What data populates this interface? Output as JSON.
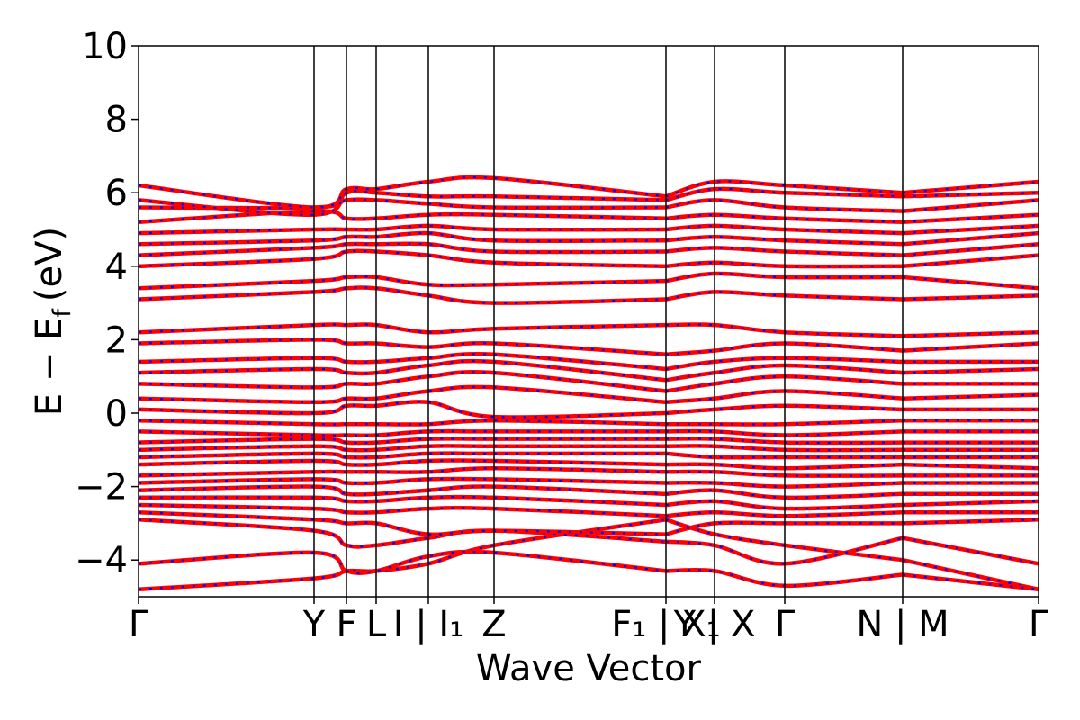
{
  "chart_data": {
    "type": "line",
    "xlabel": "Wave Vector",
    "ylabel_text": "E − E",
    "ylabel_subscript": "f",
    "ylabel_unit": "(eV)",
    "ylim": [
      -5,
      10
    ],
    "yticks": [
      -4,
      -2,
      0,
      2,
      4,
      6,
      8,
      10
    ],
    "ytick_labels": [
      "−4",
      "−2",
      "0",
      "2",
      "4",
      "6",
      "8",
      "10"
    ],
    "grid": false,
    "line_style": {
      "color": "#ff0000",
      "dash_color": "#0000ff"
    },
    "kpoint_fracs": [
      0,
      0.195,
      0.231,
      0.264,
      0.322,
      0.395,
      0.586,
      0.64,
      0.718,
      0.849,
      1.0
    ],
    "kpoint_labels": [
      "Γ",
      "Y",
      "F",
      "L",
      "I | I₁",
      "Z",
      "F₁ | X₁",
      "Y | X",
      "Γ",
      "N | M",
      "Γ"
    ],
    "band_breaks": [
      0.586,
      0.849
    ],
    "bands": [
      {
        "name": "b1",
        "y": [
          -4.8,
          -4.5,
          -4.3,
          -4.3,
          -4.1,
          -3.6,
          -2.9,
          -3.3,
          -3.6,
          -4.0,
          -4.8
        ]
      },
      {
        "name": "b2",
        "y": [
          -4.1,
          -3.8,
          -4.3,
          -4.3,
          -3.9,
          -3.8,
          -4.3,
          -4.3,
          -4.7,
          -4.4,
          -4.8
        ]
      },
      {
        "name": "b3",
        "y": [
          -2.9,
          -3.2,
          -3.6,
          -3.6,
          -3.4,
          -3.2,
          -3.5,
          -3.6,
          -4.1,
          -3.4,
          -4.1
        ]
      },
      {
        "name": "b4",
        "y": [
          -2.7,
          -2.9,
          -3.0,
          -3.0,
          -3.3,
          -3.2,
          -3.3,
          -3.0,
          -3.0,
          -3.0,
          -2.9
        ]
      },
      {
        "name": "b5",
        "y": [
          -2.5,
          -2.6,
          -2.7,
          -2.7,
          -2.6,
          -2.6,
          -2.8,
          -2.7,
          -2.8,
          -2.7,
          -2.7
        ]
      },
      {
        "name": "b6",
        "y": [
          -2.3,
          -2.3,
          -2.4,
          -2.4,
          -2.3,
          -2.3,
          -2.5,
          -2.4,
          -2.6,
          -2.5,
          -2.4
        ]
      },
      {
        "name": "b7",
        "y": [
          -2.1,
          -2.0,
          -2.2,
          -2.2,
          -2.1,
          -2.0,
          -2.2,
          -2.1,
          -2.3,
          -2.2,
          -2.2
        ]
      },
      {
        "name": "b8",
        "y": [
          -1.9,
          -1.8,
          -1.9,
          -1.9,
          -1.8,
          -1.8,
          -1.9,
          -1.9,
          -2.0,
          -1.9,
          -1.9
        ]
      },
      {
        "name": "b9",
        "y": [
          -1.7,
          -1.6,
          -1.6,
          -1.6,
          -1.6,
          -1.5,
          -1.6,
          -1.6,
          -1.7,
          -1.7,
          -1.7
        ]
      },
      {
        "name": "b10",
        "y": [
          -1.4,
          -1.3,
          -1.4,
          -1.4,
          -1.3,
          -1.3,
          -1.4,
          -1.4,
          -1.5,
          -1.4,
          -1.5
        ]
      },
      {
        "name": "b11",
        "y": [
          -1.2,
          -1.1,
          -1.2,
          -1.2,
          -1.1,
          -1.1,
          -1.1,
          -1.2,
          -1.2,
          -1.2,
          -1.2
        ]
      },
      {
        "name": "b12",
        "y": [
          -1.0,
          -0.9,
          -1.0,
          -1.0,
          -0.9,
          -0.9,
          -0.9,
          -0.9,
          -1.0,
          -1.0,
          -1.0
        ]
      },
      {
        "name": "b13",
        "y": [
          -0.8,
          -0.7,
          -0.8,
          -0.8,
          -0.7,
          -0.7,
          -0.7,
          -0.7,
          -0.8,
          -0.8,
          -0.8
        ]
      },
      {
        "name": "b14",
        "y": [
          -0.5,
          -0.6,
          -0.6,
          -0.6,
          -0.5,
          -0.5,
          -0.5,
          -0.5,
          -0.6,
          -0.5,
          -0.5
        ]
      },
      {
        "name": "b15",
        "y": [
          -0.2,
          -0.3,
          -0.3,
          -0.3,
          -0.3,
          -0.2,
          -0.3,
          -0.3,
          -0.3,
          -0.2,
          -0.2
        ]
      },
      {
        "name": "b16",
        "y": [
          0.1,
          0.0,
          0.2,
          0.2,
          0.3,
          -0.1,
          0.0,
          0.1,
          0.2,
          0.1,
          0.1
        ]
      },
      {
        "name": "b17",
        "y": [
          0.4,
          0.3,
          0.4,
          0.4,
          0.6,
          0.7,
          0.3,
          0.4,
          0.6,
          0.4,
          0.5
        ]
      },
      {
        "name": "b18",
        "y": [
          0.8,
          0.7,
          0.8,
          0.8,
          1.0,
          1.1,
          0.6,
          0.8,
          1.0,
          0.8,
          0.8
        ]
      },
      {
        "name": "b19",
        "y": [
          1.1,
          1.2,
          1.1,
          1.1,
          1.3,
          1.4,
          0.9,
          1.1,
          1.3,
          1.1,
          1.2
        ]
      },
      {
        "name": "b20",
        "y": [
          1.4,
          1.5,
          1.4,
          1.4,
          1.5,
          1.6,
          1.2,
          1.4,
          1.5,
          1.4,
          1.4
        ]
      },
      {
        "name": "b21",
        "y": [
          1.9,
          2.0,
          1.9,
          1.9,
          1.8,
          1.9,
          1.6,
          1.7,
          1.9,
          1.7,
          1.9
        ]
      },
      {
        "name": "b22",
        "y": [
          2.2,
          2.4,
          2.4,
          2.4,
          2.2,
          2.3,
          2.4,
          2.4,
          2.2,
          2.1,
          2.2
        ]
      },
      {
        "name": "b23",
        "y": [
          3.1,
          3.3,
          3.4,
          3.4,
          3.2,
          3.0,
          3.1,
          3.3,
          3.2,
          3.1,
          3.2
        ]
      },
      {
        "name": "b24",
        "y": [
          3.4,
          3.6,
          3.7,
          3.7,
          3.5,
          3.5,
          3.6,
          3.8,
          3.7,
          3.7,
          3.4
        ]
      },
      {
        "name": "b25",
        "y": [
          4.0,
          4.2,
          4.4,
          4.4,
          4.3,
          4.1,
          4.0,
          4.1,
          4.0,
          4.0,
          4.3
        ]
      },
      {
        "name": "b26",
        "y": [
          4.3,
          4.5,
          4.6,
          4.6,
          4.6,
          4.4,
          4.4,
          4.5,
          4.4,
          4.3,
          4.6
        ]
      },
      {
        "name": "b27",
        "y": [
          4.6,
          4.7,
          4.8,
          4.8,
          4.9,
          4.7,
          4.7,
          4.8,
          4.7,
          4.6,
          4.9
        ]
      },
      {
        "name": "b28",
        "y": [
          4.9,
          5.0,
          5.0,
          5.0,
          5.1,
          5.0,
          5.0,
          5.1,
          5.0,
          4.9,
          5.1
        ]
      },
      {
        "name": "b29",
        "y": [
          5.2,
          5.5,
          5.3,
          5.3,
          5.4,
          5.4,
          5.3,
          5.4,
          5.3,
          5.2,
          5.4
        ]
      },
      {
        "name": "b30",
        "y": [
          5.6,
          5.6,
          5.8,
          5.8,
          5.7,
          5.6,
          5.6,
          5.8,
          5.6,
          5.5,
          5.8
        ]
      },
      {
        "name": "b31",
        "y": [
          5.8,
          5.4,
          6.0,
          6.0,
          5.9,
          5.9,
          5.8,
          6.1,
          6.0,
          5.9,
          6.0
        ]
      },
      {
        "name": "b32",
        "y": [
          6.2,
          5.6,
          6.1,
          6.1,
          6.3,
          6.4,
          5.9,
          6.3,
          6.2,
          6.0,
          6.3
        ]
      }
    ]
  }
}
